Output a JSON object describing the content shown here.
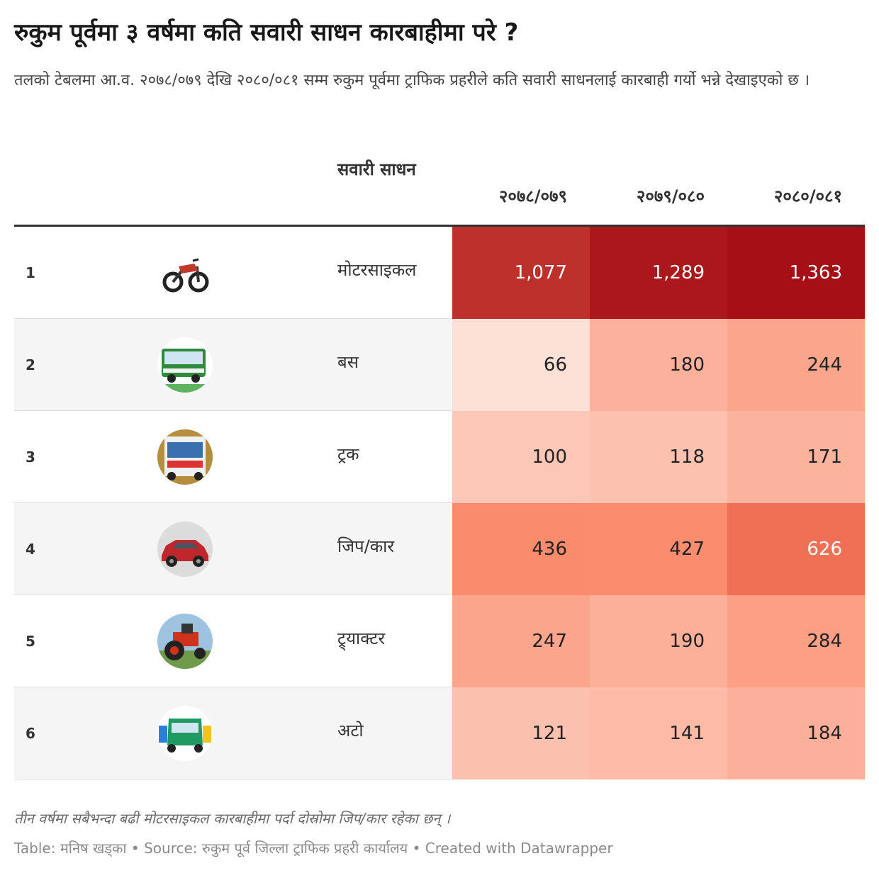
{
  "header": {
    "title": "रुकुम पूर्वमा ३ वर्षमा कति सवारी साधन कारबाहीमा परे ?",
    "subtitle": "तलको टेबलमा आ.व. २०७८/०७९ देखि २०८०/०८१ सम्म रुकुम पूर्वमा ट्राफिक प्रहरीले कति सवारी साधनलाई कारबाही गर्यो भन्ने देखाइएको छ ।"
  },
  "chart_data": {
    "type": "table",
    "columns": {
      "name": "सवारी साधन",
      "years": [
        "२०७८/०७९",
        "२०७९/०८०",
        "२०८०/०८१"
      ]
    },
    "rows": [
      {
        "rank": "1",
        "name": "मोटरसाइकल",
        "icon": "motorcycle-icon",
        "display": [
          "1,077",
          "1,289",
          "1,363"
        ],
        "values": [
          1077,
          1289,
          1363
        ]
      },
      {
        "rank": "2",
        "name": "बस",
        "icon": "bus-icon",
        "display": [
          "66",
          "180",
          "244"
        ],
        "values": [
          66,
          180,
          244
        ]
      },
      {
        "rank": "3",
        "name": "ट्रक",
        "icon": "truck-icon",
        "display": [
          "100",
          "118",
          "171"
        ],
        "values": [
          100,
          118,
          171
        ]
      },
      {
        "rank": "4",
        "name": "जिप/कार",
        "icon": "car-icon",
        "display": [
          "436",
          "427",
          "626"
        ],
        "values": [
          436,
          427,
          626
        ]
      },
      {
        "rank": "5",
        "name": "ट्र्याक्टर",
        "icon": "tractor-icon",
        "display": [
          "247",
          "190",
          "284"
        ],
        "values": [
          247,
          190,
          284
        ]
      },
      {
        "rank": "6",
        "name": "अटो",
        "icon": "auto-rickshaw-icon",
        "display": [
          "121",
          "141",
          "184"
        ],
        "values": [
          121,
          141,
          184
        ]
      }
    ],
    "color_scale": {
      "low": "#fde1d6",
      "mid": "#fb8060",
      "high": "#a50f15",
      "light_text": "#ffffff",
      "dark_text": "#222222"
    }
  },
  "footer": {
    "note": "तीन वर्षमा सबैभन्दा बढी मोटरसाइकल कारबाहीमा पर्दा दोस्रोमा जिप/कार रहेका छन् ।",
    "source": "Table: मनिष खड्का  • Source: रुकुम पूर्व जिल्ला ट्राफिक प्रहरी कार्यालय • Created with Datawrapper"
  }
}
